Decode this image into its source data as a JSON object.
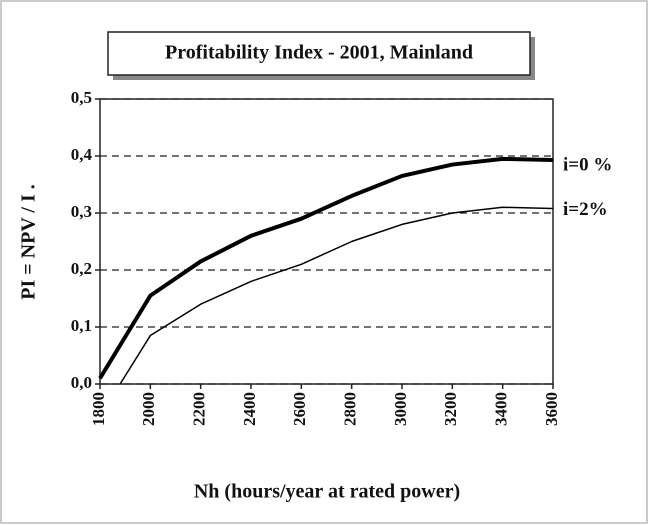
{
  "chart_data": {
    "type": "line",
    "title": "Profitability Index - 2001,  Mainland",
    "xlabel": "Nh (hours/year at rated power)",
    "ylabel": "PI = NPV / I .",
    "xlim": [
      1800,
      3600
    ],
    "ylim": [
      0,
      0.5
    ],
    "xticks": [
      1800,
      2000,
      2200,
      2400,
      2600,
      2800,
      3000,
      3200,
      3400,
      3600
    ],
    "yticks": [
      {
        "value": 0,
        "label": "0,0"
      },
      {
        "value": 0.1,
        "label": "0,1"
      },
      {
        "value": 0.2,
        "label": "0,2"
      },
      {
        "value": 0.3,
        "label": "0,3"
      },
      {
        "value": 0.4,
        "label": "0,4"
      },
      {
        "value": 0.5,
        "label": "0,5"
      }
    ],
    "grid": true,
    "series": [
      {
        "name": "i=0 %",
        "color": "#000000",
        "line_width": 4,
        "x": [
          1800,
          2000,
          2200,
          2400,
          2600,
          2800,
          3000,
          3200,
          3400,
          3600
        ],
        "values": [
          0.01,
          0.155,
          0.215,
          0.26,
          0.29,
          0.33,
          0.365,
          0.385,
          0.395,
          0.393
        ]
      },
      {
        "name": "i=2%",
        "color": "#000000",
        "line_width": 1.5,
        "x": [
          1880,
          2000,
          2200,
          2400,
          2600,
          2800,
          3000,
          3200,
          3400,
          3600
        ],
        "values": [
          0,
          0.085,
          0.14,
          0.18,
          0.21,
          0.25,
          0.28,
          0.3,
          0.31,
          0.308
        ]
      }
    ]
  }
}
